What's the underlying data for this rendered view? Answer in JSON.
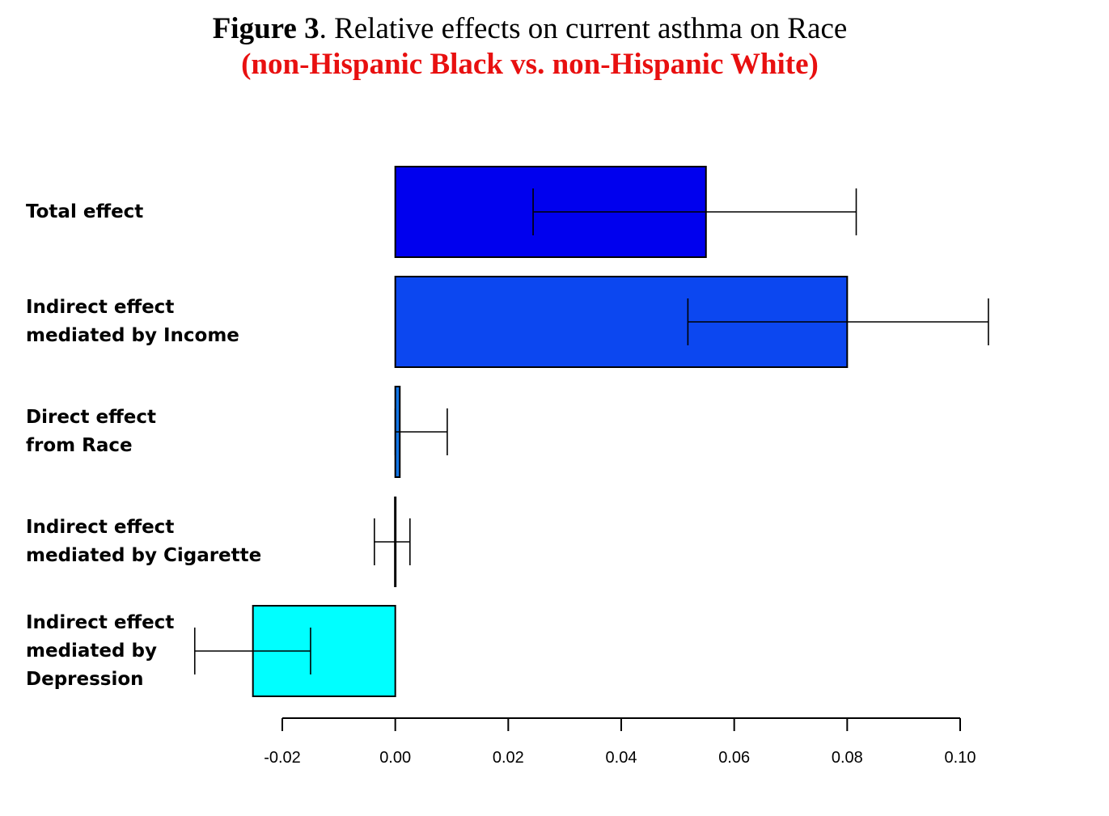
{
  "title": {
    "prefix_bold": "Figure 3",
    "main": ". Relative effects on current asthma on Race",
    "subtitle": "(non-Hispanic Black vs. non-Hispanic White)"
  },
  "chart_data": {
    "type": "bar",
    "orientation": "horizontal",
    "categories": [
      "Total effect",
      "Indirect effect\nmediated by Income",
      "Direct effect\nfrom Race",
      "Indirect effect\nmediated by Cigarette",
      "Indirect effect\nmediated by\nDepression"
    ],
    "values": [
      0.055,
      0.08,
      0.0008,
      0.0,
      -0.0252
    ],
    "error_low": [
      0.0244,
      0.0518,
      0.0,
      -0.0037,
      -0.0355
    ],
    "error_high": [
      0.0816,
      0.105,
      0.0092,
      0.0026,
      -0.015
    ],
    "colors": [
      "#0000ee",
      "#0c47f0",
      "#1276e6",
      "#1aa6e8",
      "#00ffff"
    ],
    "xlim": [
      -0.02,
      0.1
    ],
    "xticks": [
      -0.02,
      0.0,
      0.02,
      0.04,
      0.06,
      0.08,
      0.1
    ],
    "xtick_labels": [
      "-0.02",
      "0.00",
      "0.02",
      "0.04",
      "0.06",
      "0.08",
      "0.10"
    ],
    "xlabel": "",
    "ylabel": "",
    "grid": false,
    "legend": "none"
  }
}
